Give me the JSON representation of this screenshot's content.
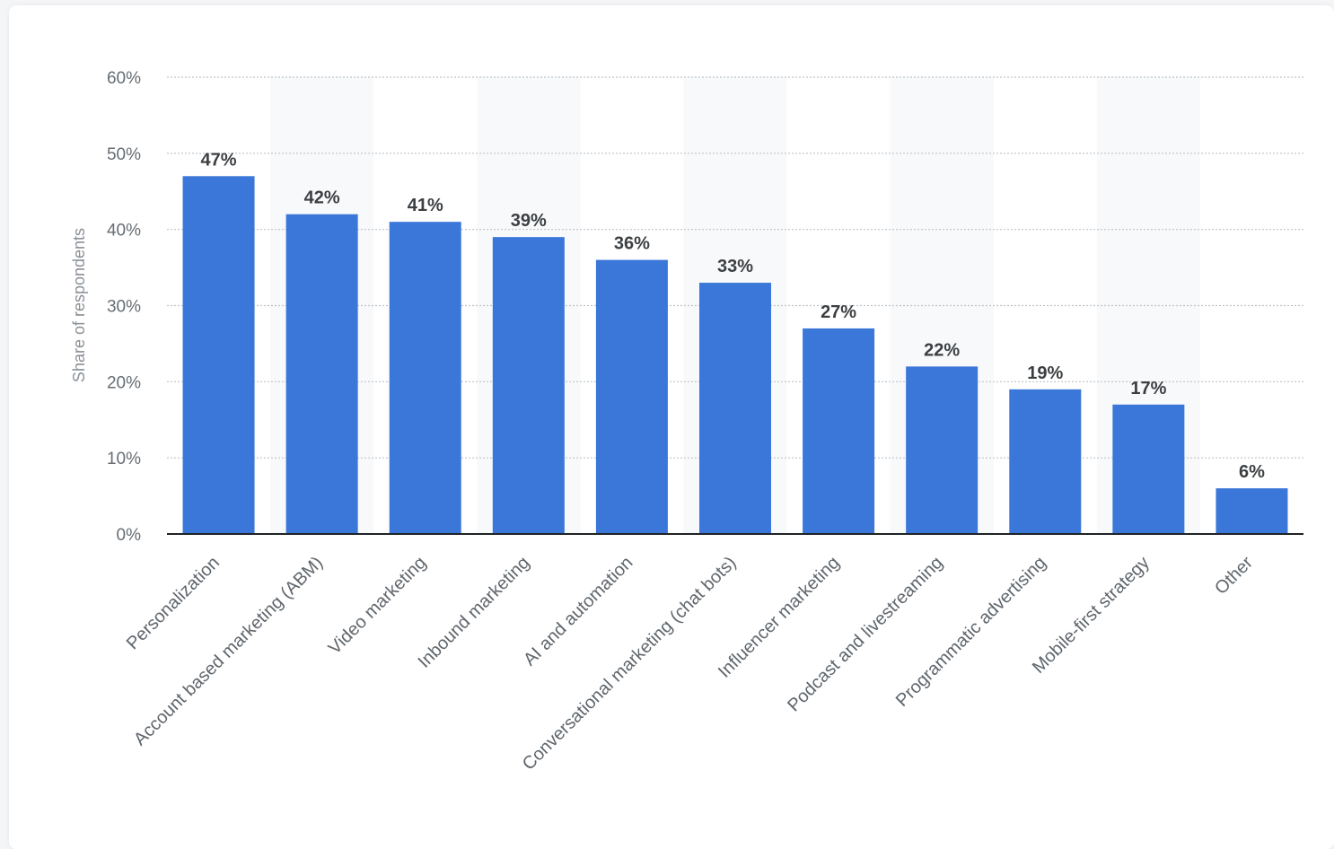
{
  "chart_data": {
    "type": "bar",
    "categories": [
      "Personalization",
      "Account based marketing (ABM)",
      "Video marketing",
      "Inbound marketing",
      "AI and automation",
      "Conversational marketing (chat bots)",
      "Influencer marketing",
      "Podcast and livestreaming",
      "Programmatic advertising",
      "Mobile-first strategy",
      "Other"
    ],
    "values": [
      47,
      42,
      41,
      39,
      36,
      33,
      27,
      22,
      19,
      17,
      6
    ],
    "data_labels": [
      "47%",
      "42%",
      "41%",
      "39%",
      "36%",
      "33%",
      "27%",
      "22%",
      "19%",
      "17%",
      "6%"
    ],
    "ylabel": "Share of respondents",
    "ylim": [
      0,
      60
    ],
    "yticks": [
      0,
      10,
      20,
      30,
      40,
      50,
      60
    ],
    "ytick_labels": [
      "0%",
      "10%",
      "20%",
      "30%",
      "40%",
      "50%",
      "60%"
    ],
    "grid": true,
    "bar_color": "#3a77d8",
    "band_color": "#f8f9fa"
  }
}
